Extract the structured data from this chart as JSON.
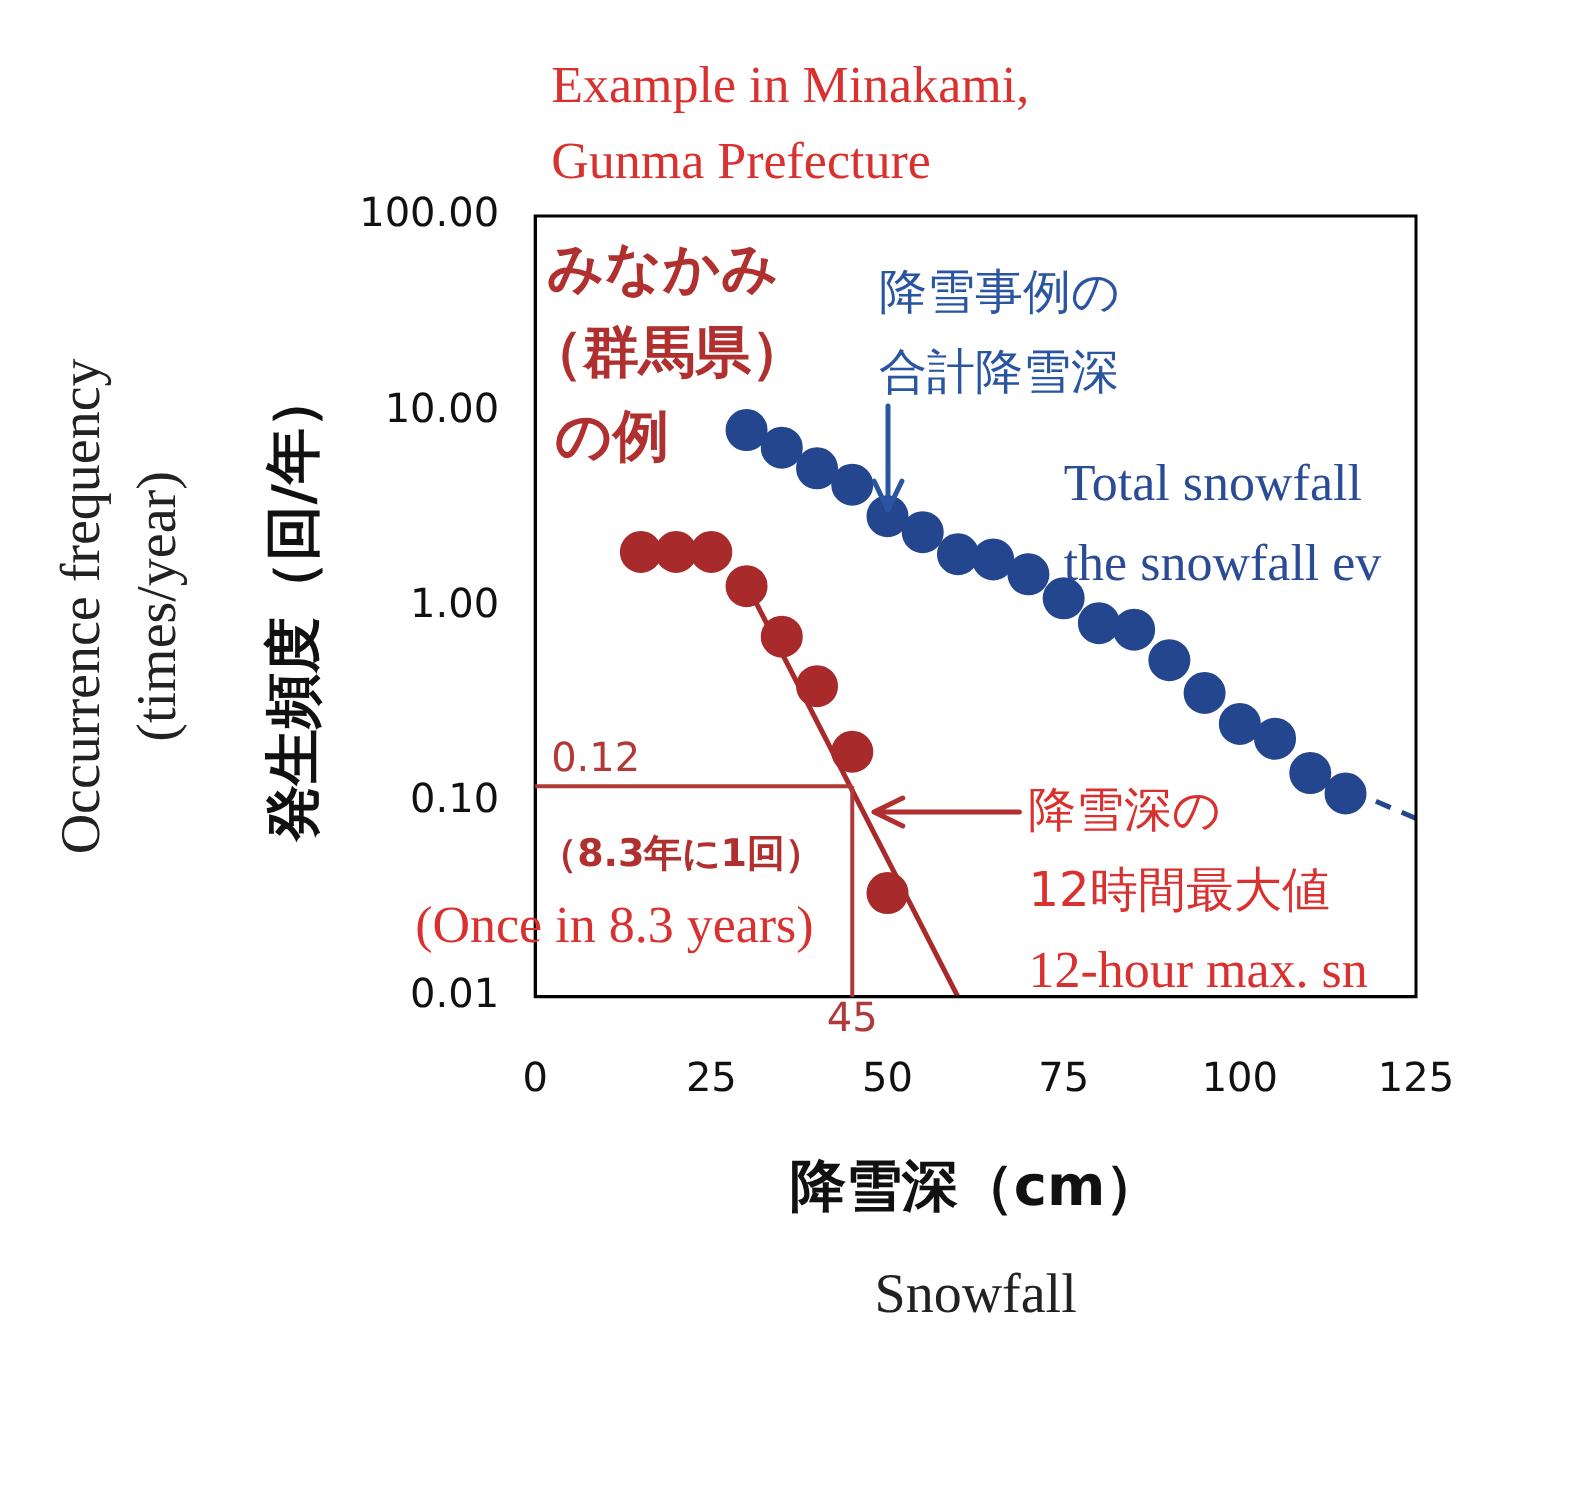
{
  "chart_data": {
    "type": "scatter",
    "xlabel": "降雪深（cm）",
    "ylabel": "発生頻度（回/年）",
    "x": [
      30,
      35,
      40,
      45,
      50,
      55,
      60,
      65,
      70,
      75,
      80,
      85,
      90,
      95,
      100,
      105,
      110,
      115
    ],
    "series": [
      {
        "color": "#24468f",
        "marker": "circle",
        "values": [
          8.0,
          6.5,
          5.1,
          4.2,
          2.9,
          2.4,
          1.85,
          1.74,
          1.46,
          1.1,
          0.82,
          0.76,
          0.53,
          0.36,
          0.25,
          0.21,
          0.14,
          0.11
        ]
      },
      {
        "color": "#a82a2a",
        "marker": "circle",
        "x": [
          15,
          20,
          25
        ],
        "values": [
          1.9,
          1.9,
          1.9
        ]
      },
      {
        "color": "#a82a2a",
        "marker": "circle",
        "x": [
          30,
          35,
          40,
          45,
          50
        ],
        "values": [
          1.27,
          0.7,
          0.39,
          0.18,
          0.034
        ]
      },
      {
        "type": "line",
        "color": "#a82a2a",
        "x": [
          30,
          60
        ],
        "values": [
          1.3,
          0.01
        ],
        "line_style": "solid"
      },
      {
        "type": "line",
        "color": "#24468f",
        "x": [
          112,
          125
        ],
        "values": [
          0.13,
          0.082
        ],
        "line_style": "dashed"
      }
    ],
    "xlim": [
      0,
      125
    ],
    "xticks": [
      0,
      25,
      50,
      75,
      100,
      125
    ],
    "ylim": [
      0.01,
      100
    ],
    "log": "y",
    "yticks": [
      0.01,
      {
        "value": 0.1,
        "label": "0.10"
      },
      {
        "value": 1,
        "label": "1.00"
      },
      {
        "value": 10,
        "label": "10.00"
      },
      {
        "value": 100,
        "label": "100.00"
      }
    ],
    "ref_lines": [
      {
        "axis": "y",
        "value": 0.12,
        "label": "0.12",
        "color": "#b03a3a"
      },
      {
        "axis": "x",
        "value": 45,
        "label": "45",
        "color": "#b03a3a"
      }
    ],
    "annotations": [
      "Example in Minakami,\nGunma Prefecture",
      "みなかみ",
      "（群馬県）",
      "の例",
      "降雪事例の",
      {
        "text": "合計降雪深",
        "x": 50,
        "y": 2.9
      },
      "Total snowfall\nthe snowfall ev",
      "降雪深の",
      "12時間最大値",
      "12-hour max. sn",
      "（8.3年に1回）",
      "(Once in 8.3 years)",
      "Occurrence frequency\n(times/year)",
      "Snowfall"
    ]
  }
}
